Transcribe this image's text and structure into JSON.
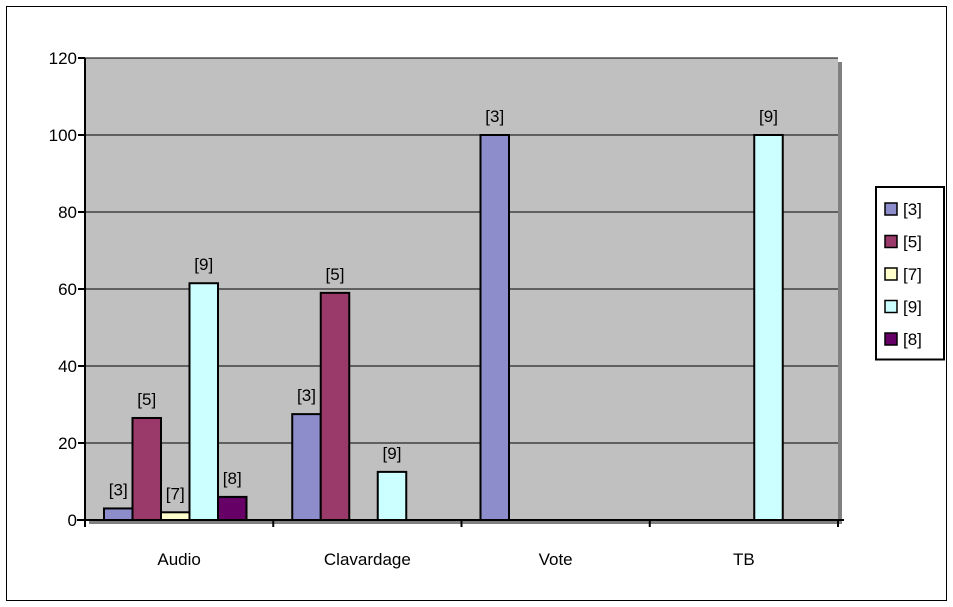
{
  "chart_data": {
    "type": "bar",
    "title": "",
    "xlabel": "",
    "ylabel": "",
    "categories": [
      "Audio",
      "Clavardage",
      "Vote",
      "TB"
    ],
    "ylim": [
      0,
      120
    ],
    "yticks": [
      0,
      20,
      40,
      60,
      80,
      100,
      120
    ],
    "grid": true,
    "legend_position": "right",
    "plot_background": "#C0C0C0",
    "series": [
      {
        "name": "[3]",
        "color": "#8D8DCB",
        "values": [
          3,
          27.5,
          100,
          null
        ]
      },
      {
        "name": "[5]",
        "color": "#9A3A6A",
        "values": [
          26.5,
          59,
          null,
          null
        ]
      },
      {
        "name": "[7]",
        "color": "#FFFFCC",
        "values": [
          2,
          null,
          null,
          null
        ]
      },
      {
        "name": "[9]",
        "color": "#CCFFFF",
        "values": [
          61.5,
          12.5,
          null,
          100
        ]
      },
      {
        "name": "[8]",
        "color": "#660066",
        "values": [
          6,
          null,
          null,
          null
        ]
      }
    ]
  }
}
